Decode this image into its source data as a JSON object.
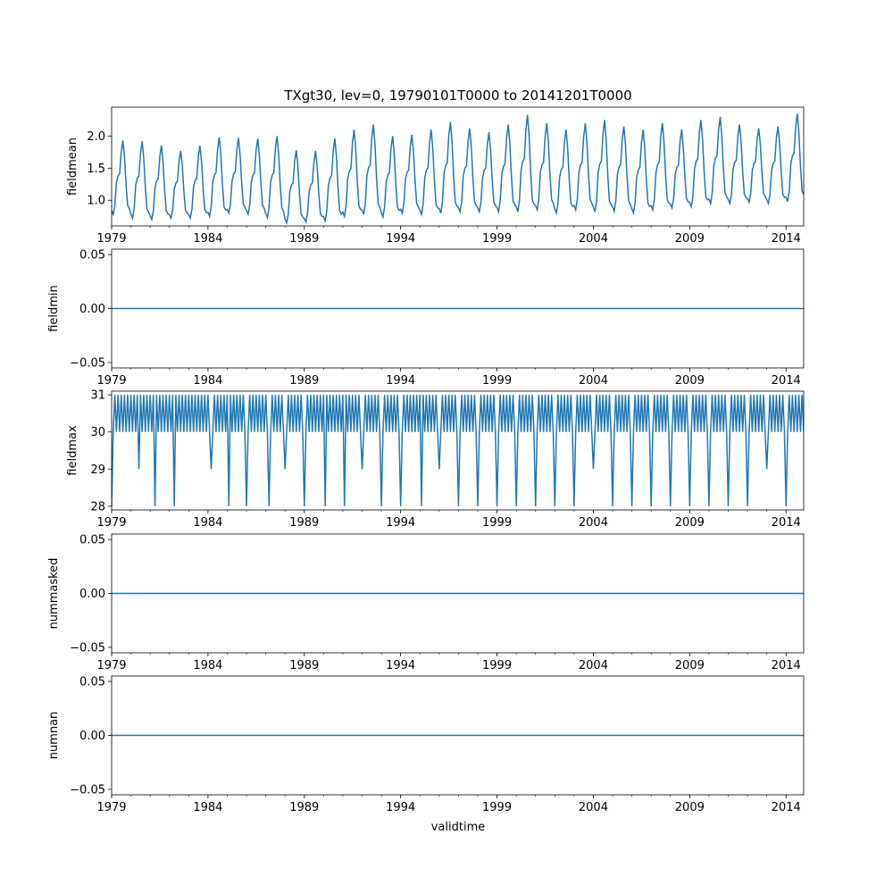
{
  "figure": {
    "title": "TXgt30, lev=0, 19790101T0000 to 20141201T0000",
    "xlabel": "validtime",
    "line_color": "#1f77b4"
  },
  "chart_data": [
    {
      "type": "line",
      "ylabel": "fieldmean",
      "x_range": [
        "1979-01",
        "2014-12"
      ],
      "xlim": [
        "1979-01",
        "2014-12"
      ],
      "ylim": [
        0.6,
        2.45
      ],
      "x_ticks": [
        "1979",
        "1984",
        "1989",
        "1994",
        "1999",
        "2004",
        "2009",
        "2014"
      ],
      "y_ticks": [
        "1.0",
        "1.5",
        "2.0"
      ],
      "y_tick_values": [
        1.0,
        1.5,
        2.0
      ],
      "description": "monthly mean with seasonal cycle; yearly peaks rising from ~1.9 to ~2.35, troughs ~0.7-1.0",
      "year_peaks": [
        1.93,
        1.92,
        1.85,
        1.77,
        1.85,
        1.98,
        1.97,
        1.96,
        2.0,
        1.78,
        1.77,
        1.96,
        2.1,
        2.18,
        2.0,
        2.02,
        2.1,
        2.22,
        2.12,
        2.06,
        2.18,
        2.33,
        2.2,
        2.1,
        2.2,
        2.25,
        2.15,
        2.1,
        2.2,
        2.1,
        2.25,
        2.3,
        2.18,
        2.12,
        2.15,
        2.35
      ],
      "year_troughs": [
        0.78,
        0.72,
        0.7,
        0.72,
        0.72,
        0.75,
        0.8,
        0.78,
        0.73,
        0.65,
        0.66,
        0.68,
        0.75,
        0.78,
        0.74,
        0.8,
        0.78,
        0.8,
        0.82,
        0.82,
        0.82,
        0.82,
        0.85,
        0.8,
        0.85,
        0.82,
        0.83,
        0.8,
        0.85,
        0.88,
        0.9,
        0.95,
        0.95,
        0.97,
        0.95,
        0.98
      ]
    },
    {
      "type": "line",
      "ylabel": "fieldmin",
      "xlim": [
        "1979-01",
        "2014-12"
      ],
      "ylim": [
        -0.055,
        0.055
      ],
      "x_ticks": [
        "1979",
        "1984",
        "1989",
        "1994",
        "1999",
        "2004",
        "2009",
        "2014"
      ],
      "y_ticks": [
        "−0.05",
        "0.00",
        "0.05"
      ],
      "y_tick_values": [
        -0.05,
        0.0,
        0.05
      ],
      "constant_value": 0.0
    },
    {
      "type": "line",
      "ylabel": "fieldmax",
      "xlim": [
        "1979-01",
        "2014-12"
      ],
      "ylim": [
        27.9,
        31.1
      ],
      "x_ticks": [
        "1979",
        "1984",
        "1989",
        "1994",
        "1999",
        "2004",
        "2009",
        "2014"
      ],
      "y_ticks": [
        "28",
        "29",
        "30",
        "31"
      ],
      "y_tick_values": [
        28,
        29,
        30,
        31
      ],
      "description": "monthly max alternating between 30 and 31 with occasional dips to 29 or 28",
      "dips": [
        {
          "date": "1979-01",
          "value": 28
        },
        {
          "date": "1980-06",
          "value": 29
        },
        {
          "date": "1981-04",
          "value": 28
        },
        {
          "date": "1982-04",
          "value": 28
        },
        {
          "date": "1984-03",
          "value": 29
        },
        {
          "date": "1985-02",
          "value": 28
        },
        {
          "date": "1986-01",
          "value": 28
        },
        {
          "date": "1987-03",
          "value": 28
        },
        {
          "date": "1988-01",
          "value": 29
        },
        {
          "date": "1989-01",
          "value": 28
        },
        {
          "date": "1990-02",
          "value": 28
        },
        {
          "date": "1991-02",
          "value": 28
        },
        {
          "date": "1992-01",
          "value": 29
        },
        {
          "date": "1993-01",
          "value": 28
        },
        {
          "date": "1994-01",
          "value": 28
        },
        {
          "date": "1995-02",
          "value": 28
        },
        {
          "date": "1996-01",
          "value": 29
        },
        {
          "date": "1997-01",
          "value": 28
        },
        {
          "date": "1998-01",
          "value": 28
        },
        {
          "date": "1999-01",
          "value": 28
        },
        {
          "date": "2000-01",
          "value": 28
        },
        {
          "date": "2001-01",
          "value": 28
        },
        {
          "date": "2002-01",
          "value": 28
        },
        {
          "date": "2003-01",
          "value": 28
        },
        {
          "date": "2004-01",
          "value": 29
        },
        {
          "date": "2005-01",
          "value": 28
        },
        {
          "date": "2006-01",
          "value": 28
        },
        {
          "date": "2007-01",
          "value": 28
        },
        {
          "date": "2008-01",
          "value": 28
        },
        {
          "date": "2009-01",
          "value": 28
        },
        {
          "date": "2010-01",
          "value": 28
        },
        {
          "date": "2011-01",
          "value": 28
        },
        {
          "date": "2012-01",
          "value": 28
        },
        {
          "date": "2013-01",
          "value": 29
        },
        {
          "date": "2014-01",
          "value": 28
        }
      ]
    },
    {
      "type": "line",
      "ylabel": "nummasked",
      "xlim": [
        "1979-01",
        "2014-12"
      ],
      "ylim": [
        -0.055,
        0.055
      ],
      "x_ticks": [
        "1979",
        "1984",
        "1989",
        "1994",
        "1999",
        "2004",
        "2009",
        "2014"
      ],
      "y_ticks": [
        "−0.05",
        "0.00",
        "0.05"
      ],
      "y_tick_values": [
        -0.05,
        0.0,
        0.05
      ],
      "constant_value": 0.0
    },
    {
      "type": "line",
      "ylabel": "numnan",
      "xlim": [
        "1979-01",
        "2014-12"
      ],
      "ylim": [
        -0.055,
        0.055
      ],
      "x_ticks": [
        "1979",
        "1984",
        "1989",
        "1994",
        "1999",
        "2004",
        "2009",
        "2014"
      ],
      "y_ticks": [
        "−0.05",
        "0.00",
        "0.05"
      ],
      "y_tick_values": [
        -0.05,
        0.0,
        0.05
      ],
      "constant_value": 0.0
    }
  ]
}
